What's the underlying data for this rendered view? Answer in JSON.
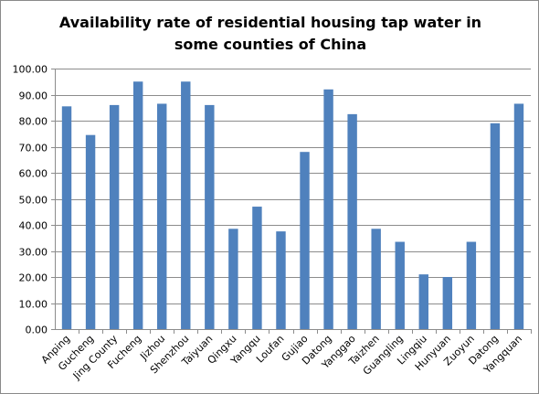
{
  "chart_data": {
    "type": "bar",
    "title": "Availability rate of residential housing tap water in some counties of China",
    "xlabel": "",
    "ylabel": "",
    "ylim": [
      0,
      100
    ],
    "yticks": [
      "0.00",
      "10.00",
      "20.00",
      "30.00",
      "40.00",
      "50.00",
      "60.00",
      "70.00",
      "80.00",
      "90.00",
      "100.00"
    ],
    "grid": true,
    "legend": "none",
    "bar_color": "#4F81BD",
    "categories": [
      "Anping",
      "Gucheng",
      "Jing County",
      "Fucheng",
      "Jizhou",
      "Shenzhou",
      "Taiyuan",
      "Qingxu",
      "Yangqu",
      "Loufan",
      "Gujiao",
      "Datong",
      "Yanggao",
      "Taizhen",
      "Guangling",
      "Lingqiu",
      "Hunyuan",
      "Zuoyun",
      "Datong",
      "Yangquan"
    ],
    "values": [
      85.5,
      74.5,
      86.0,
      95.0,
      86.5,
      95.0,
      86.0,
      38.5,
      47.0,
      37.5,
      68.0,
      92.0,
      82.5,
      38.5,
      33.5,
      21.0,
      20.0,
      33.5,
      79.0,
      86.5
    ]
  }
}
